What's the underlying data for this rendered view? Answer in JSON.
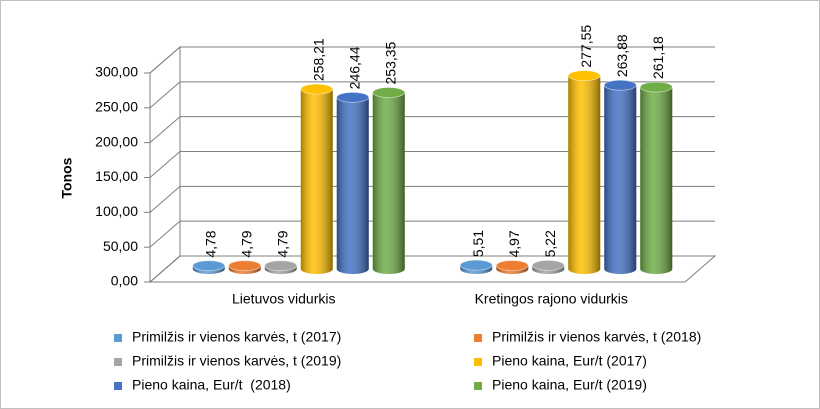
{
  "chart_data": {
    "type": "bar3d",
    "y_label": "Tonos",
    "categories": [
      "Lietuvos vidurkis",
      "Kretingos rajono vidurkis"
    ],
    "series": [
      {
        "name": "Primilžis ir vienos karvės, t (2017)",
        "color": "#5b9bd5",
        "values": [
          4.78,
          5.51
        ],
        "value_labels": [
          "4,78",
          "5,51"
        ]
      },
      {
        "name": "Primilžis ir vienos karvės, t (2018)",
        "color": "#ed7d31",
        "values": [
          4.79,
          4.97
        ],
        "value_labels": [
          "4,79",
          "4,97"
        ]
      },
      {
        "name": "Primilžis ir vienos karvės, t (2019)",
        "color": "#a5a5a5",
        "values": [
          4.79,
          5.22
        ],
        "value_labels": [
          "4,79",
          "5,22"
        ]
      },
      {
        "name": "Pieno kaina, Eur/t (2017)",
        "color": "#ffc000",
        "values": [
          258.21,
          277.55
        ],
        "value_labels": [
          "258,21",
          "277,55"
        ]
      },
      {
        "name": "Pieno kaina, Eur/t  (2018)",
        "color": "#4472c4",
        "values": [
          246.44,
          263.88
        ],
        "value_labels": [
          "246,44",
          "263,88"
        ]
      },
      {
        "name": "Pieno kaina, Eur/t (2019)",
        "color": "#70ad47",
        "values": [
          253.35,
          261.18
        ],
        "value_labels": [
          "253,35",
          "261,18"
        ]
      }
    ],
    "ylim": [
      0,
      300
    ],
    "yticks": [
      {
        "value": 0,
        "label": "0,00"
      },
      {
        "value": 50,
        "label": "50,00"
      },
      {
        "value": 100,
        "label": "100,00"
      },
      {
        "value": 150,
        "label": "150,00"
      },
      {
        "value": 200,
        "label": "200,00"
      },
      {
        "value": 250,
        "label": "250,00"
      },
      {
        "value": 300,
        "label": "300,00"
      }
    ],
    "grid": true
  }
}
